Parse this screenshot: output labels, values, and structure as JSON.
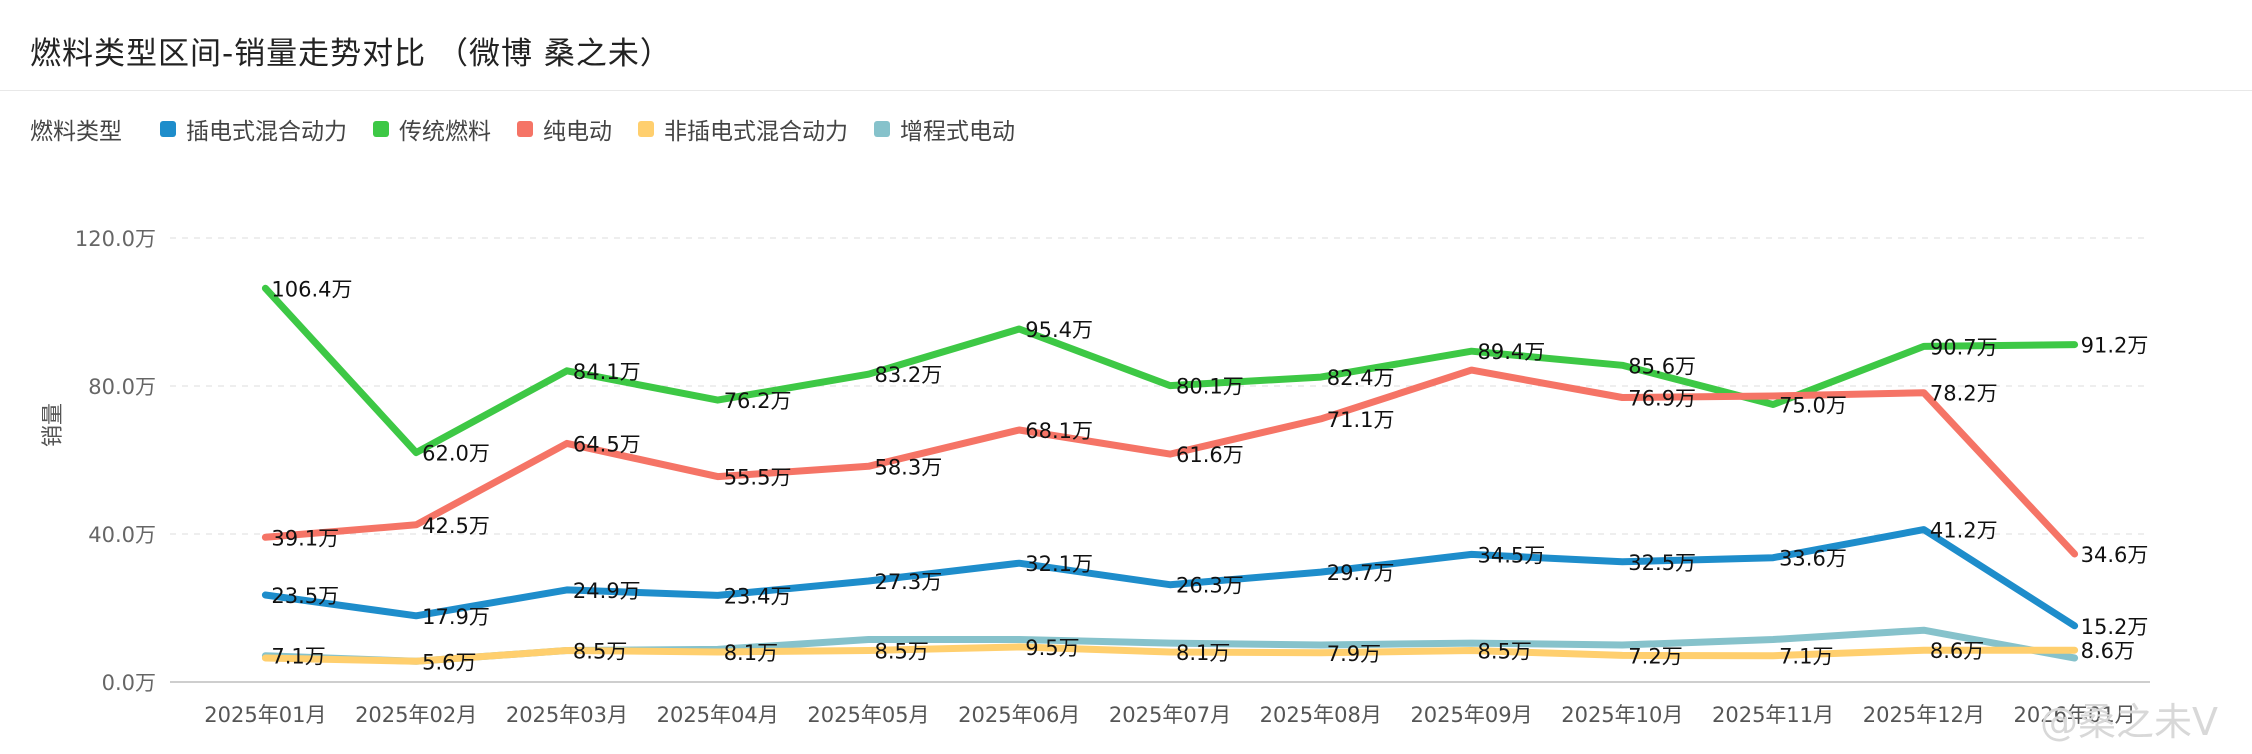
{
  "title": "燃料类型区间-销量走势对比 （微博 桑之未）",
  "legend": {
    "title": "燃料类型",
    "items": [
      {
        "label": "插电式混合动力",
        "color": "#1E8DCB"
      },
      {
        "label": "传统燃料",
        "color": "#3DC845"
      },
      {
        "label": "纯电动",
        "color": "#F57466"
      },
      {
        "label": "非插电式混合动力",
        "color": "#FFCF6E"
      },
      {
        "label": "增程式电动",
        "color": "#86C2CB"
      }
    ]
  },
  "watermark": "@桑之未V",
  "chart_data": {
    "type": "line",
    "categories": [
      "2025年01月",
      "2025年02月",
      "2025年03月",
      "2025年04月",
      "2025年05月",
      "2025年06月",
      "2025年07月",
      "2025年08月",
      "2025年09月",
      "2025年10月",
      "2025年11月",
      "2025年12月",
      "2026年01月"
    ],
    "ylabel": "销量",
    "ylim": [
      0,
      120
    ],
    "yticks": [
      0,
      40,
      80,
      120
    ],
    "ytick_labels": [
      "0.0万",
      "40.0万",
      "80.0万",
      "120.0万"
    ],
    "grid": true,
    "legend_position": "top-left",
    "value_suffix": "万",
    "series": [
      {
        "name": "传统燃料",
        "color": "#3DC845",
        "values": [
          106.4,
          62.0,
          84.1,
          76.2,
          83.2,
          95.4,
          80.1,
          82.4,
          89.4,
          85.6,
          75.0,
          90.7,
          91.2
        ],
        "show_labels": true
      },
      {
        "name": "纯电动",
        "color": "#F57466",
        "values": [
          39.1,
          42.5,
          64.5,
          55.5,
          58.3,
          68.1,
          61.6,
          71.1,
          84.3,
          76.9,
          77.3,
          78.2,
          34.6
        ],
        "labels": [
          "39.1万",
          "42.5万",
          "64.5万",
          "55.5万",
          "58.3万",
          "68.1万",
          "61.6万",
          "71.1万",
          "",
          "76.9万",
          "",
          "78.2万",
          "34.6万"
        ]
      },
      {
        "name": "插电式混合动力",
        "color": "#1E8DCB",
        "values": [
          23.5,
          17.9,
          24.9,
          23.4,
          27.3,
          32.1,
          26.3,
          29.7,
          34.5,
          32.5,
          33.6,
          41.2,
          15.2
        ],
        "show_labels": true
      },
      {
        "name": "增程式电动",
        "color": "#86C2CB",
        "values": [
          7.1,
          5.6,
          8.5,
          8.8,
          11.5,
          11.5,
          10.5,
          10.0,
          10.5,
          10.0,
          11.5,
          14.0,
          6.5
        ],
        "labels": [
          "7.1万",
          "5.6万",
          "8.5万",
          "",
          "",
          "",
          "",
          "",
          "",
          "",
          "",
          "",
          ""
        ]
      },
      {
        "name": "非插电式混合动力",
        "color": "#FFCF6E",
        "values": [
          6.5,
          5.6,
          8.5,
          8.1,
          8.5,
          9.5,
          8.1,
          7.9,
          8.5,
          7.2,
          7.1,
          8.6,
          8.6
        ],
        "labels": [
          "",
          "",
          "",
          "8.1万",
          "8.5万",
          "9.5万",
          "8.1万",
          "7.9万",
          "8.5万",
          "7.2万",
          "7.1万",
          "8.6万",
          "8.6万"
        ]
      }
    ]
  }
}
